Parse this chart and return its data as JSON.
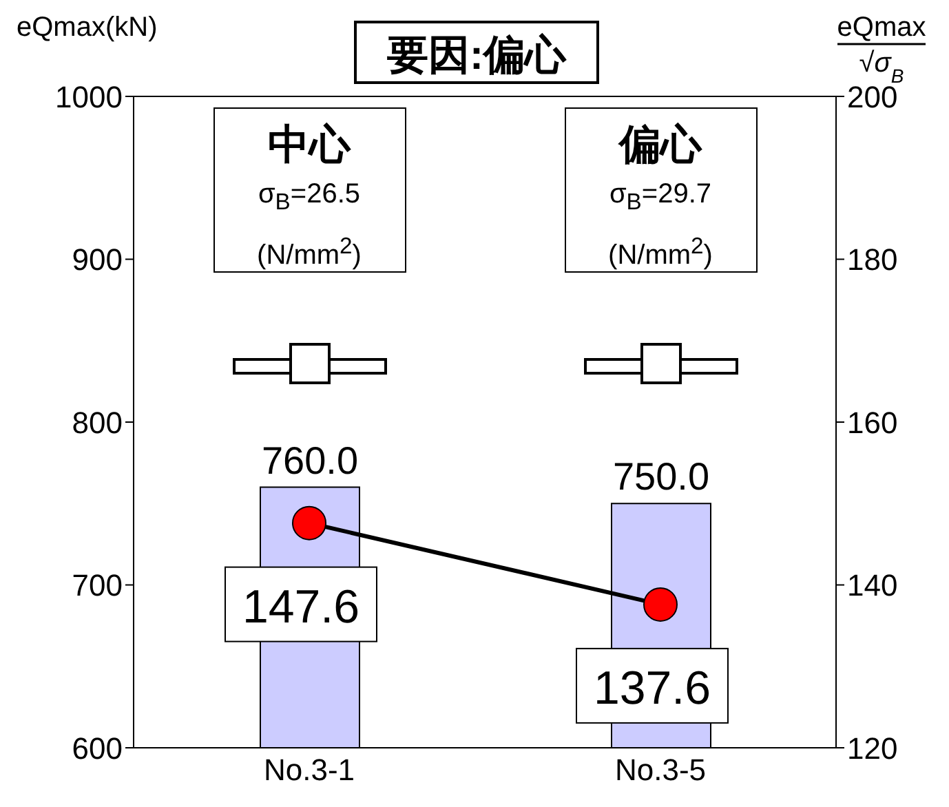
{
  "chart_data": {
    "type": "bar",
    "title": "要因:偏心",
    "ylabel": "eQmax(kN)",
    "y2label": "eQmax\n√σ$_{B}$",
    "categories": [
      "No.3-1",
      "No.3-5"
    ],
    "series": [
      {
        "color": "#ccccff",
        "values": [
          760.0,
          750.0
        ],
        "value_labels": [
          "760.0",
          "750.0"
        ]
      },
      {
        "type": "line",
        "axis": "y2",
        "color": "#ff0000",
        "values": [
          147.6,
          137.6
        ],
        "value_labels": [
          "147.6",
          "137.6"
        ],
        "marker": "circle"
      }
    ],
    "ylim": [
      600,
      1000
    ],
    "yticks": [
      600,
      700,
      800,
      900,
      1000
    ],
    "y2lim": [
      120,
      200
    ],
    "y2ticks": [
      120,
      140,
      160,
      180,
      200
    ],
    "annotations": [
      "中心\nσ$_{B}$=26.5\n(N/mm$^{2}$)",
      "偏心\nσ$_{B}$=29.7\n(N/mm$^{2}$)"
    ],
    "grid": false,
    "legend": false
  }
}
